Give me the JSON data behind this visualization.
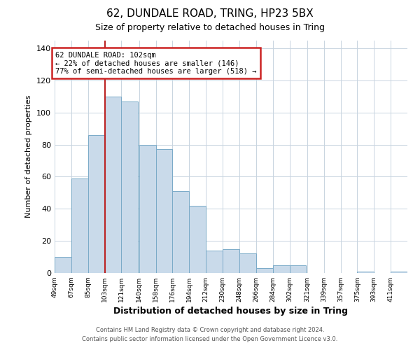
{
  "title": "62, DUNDALE ROAD, TRING, HP23 5BX",
  "subtitle": "Size of property relative to detached houses in Tring",
  "xlabel": "Distribution of detached houses by size in Tring",
  "ylabel": "Number of detached properties",
  "footnote1": "Contains HM Land Registry data © Crown copyright and database right 2024.",
  "footnote2": "Contains public sector information licensed under the Open Government Licence v3.0.",
  "bar_color": "#c9daea",
  "bar_edge_color": "#7aaac8",
  "grid_color": "#c8d4e0",
  "bg_color": "#ffffff",
  "plot_bg_color": "#ffffff",
  "vline_x": 103,
  "vline_color": "#bb2222",
  "annotation_line1": "62 DUNDALE ROAD: 102sqm",
  "annotation_line2": "← 22% of detached houses are smaller (146)",
  "annotation_line3": "77% of semi-detached houses are larger (518) →",
  "annotation_box_color": "#cc2222",
  "categories": [
    "49sqm",
    "67sqm",
    "85sqm",
    "103sqm",
    "121sqm",
    "140sqm",
    "158sqm",
    "176sqm",
    "194sqm",
    "212sqm",
    "230sqm",
    "248sqm",
    "266sqm",
    "284sqm",
    "302sqm",
    "321sqm",
    "339sqm",
    "357sqm",
    "375sqm",
    "393sqm",
    "411sqm"
  ],
  "bin_edges": [
    49,
    67,
    85,
    103,
    121,
    140,
    158,
    176,
    194,
    212,
    230,
    248,
    266,
    284,
    302,
    321,
    339,
    357,
    375,
    393,
    411
  ],
  "bin_width": 18,
  "values": [
    10,
    59,
    86,
    110,
    107,
    80,
    77,
    51,
    42,
    14,
    15,
    12,
    3,
    5,
    5,
    0,
    0,
    0,
    1,
    0,
    1
  ],
  "ylim": [
    0,
    145
  ],
  "yticks": [
    0,
    20,
    40,
    60,
    80,
    100,
    120,
    140
  ],
  "footnote_color": "#555555"
}
